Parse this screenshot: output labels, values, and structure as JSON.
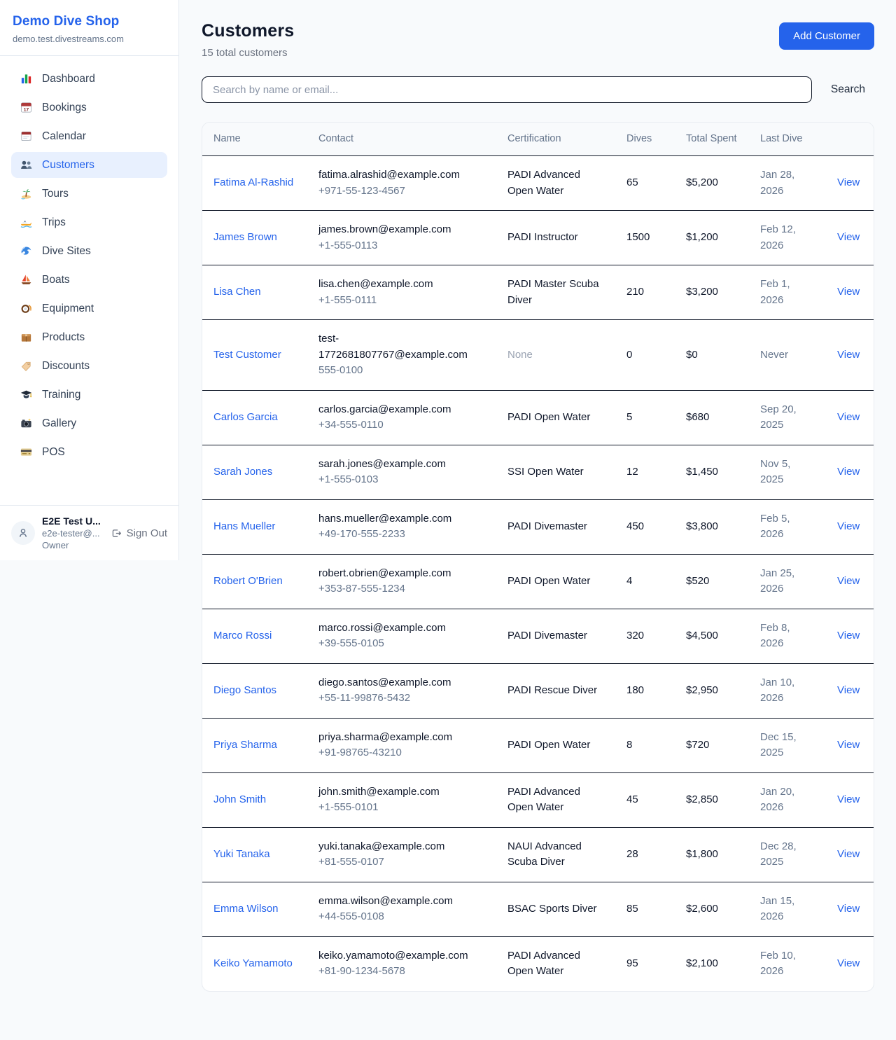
{
  "colors": {
    "accent_blue": "#2563eb",
    "active_item_bg": "#e8f0fe",
    "page_bg": "#f8fafc",
    "dark_text": "#0f172a",
    "muted_text": "#64748b",
    "row_border": "#101828"
  },
  "sidebar": {
    "shop_name": "Demo Dive Shop",
    "shop_domain": "demo.test.divestreams.com",
    "items": [
      {
        "label": "Dashboard",
        "icon": "bar-chart",
        "active": false
      },
      {
        "label": "Bookings",
        "icon": "calendar-date",
        "active": false
      },
      {
        "label": "Calendar",
        "icon": "calendar-pad",
        "active": false
      },
      {
        "label": "Customers",
        "icon": "people",
        "active": true
      },
      {
        "label": "Tours",
        "icon": "island",
        "active": false
      },
      {
        "label": "Trips",
        "icon": "speedboat",
        "active": false
      },
      {
        "label": "Dive Sites",
        "icon": "wave",
        "active": false
      },
      {
        "label": "Boats",
        "icon": "sailboat",
        "active": false
      },
      {
        "label": "Equipment",
        "icon": "diving-mask",
        "active": false
      },
      {
        "label": "Products",
        "icon": "package",
        "active": false
      },
      {
        "label": "Discounts",
        "icon": "tag",
        "active": false
      },
      {
        "label": "Training",
        "icon": "grad-cap",
        "active": false
      },
      {
        "label": "Gallery",
        "icon": "camera",
        "active": false
      },
      {
        "label": "POS",
        "icon": "credit-card",
        "active": false
      }
    ],
    "user": {
      "name": "E2E Test U...",
      "email": "e2e-tester@...",
      "role": "Owner",
      "sign_out_label": "Sign Out"
    }
  },
  "header": {
    "title": "Customers",
    "subtitle": "15 total customers",
    "add_button_label": "Add Customer"
  },
  "search": {
    "placeholder": "Search by name or email...",
    "button_label": "Search"
  },
  "table": {
    "columns": [
      "Name",
      "Contact",
      "Certification",
      "Dives",
      "Total Spent",
      "Last Dive",
      ""
    ],
    "rows": [
      {
        "name": "Fatima Al-Rashid",
        "email": "fatima.alrashid@example.com",
        "phone": "+971-55-123-4567",
        "certification": "PADI Advanced Open Water",
        "dives": "65",
        "total_spent": "$5,200",
        "last_dive": "Jan 28, 2026",
        "action": "View"
      },
      {
        "name": "James Brown",
        "email": "james.brown@example.com",
        "phone": "+1-555-0113",
        "certification": "PADI Instructor",
        "dives": "1500",
        "total_spent": "$1,200",
        "last_dive": "Feb 12, 2026",
        "action": "View"
      },
      {
        "name": "Lisa Chen",
        "email": "lisa.chen@example.com",
        "phone": "+1-555-0111",
        "certification": "PADI Master Scuba Diver",
        "dives": "210",
        "total_spent": "$3,200",
        "last_dive": "Feb 1, 2026",
        "action": "View"
      },
      {
        "name": "Test Customer",
        "email": "test-1772681807767@example.com",
        "phone": "555-0100",
        "certification": "None",
        "dives": "0",
        "total_spent": "$0",
        "last_dive": "Never",
        "action": "View"
      },
      {
        "name": "Carlos Garcia",
        "email": "carlos.garcia@example.com",
        "phone": "+34-555-0110",
        "certification": "PADI Open Water",
        "dives": "5",
        "total_spent": "$680",
        "last_dive": "Sep 20, 2025",
        "action": "View"
      },
      {
        "name": "Sarah Jones",
        "email": "sarah.jones@example.com",
        "phone": "+1-555-0103",
        "certification": "SSI Open Water",
        "dives": "12",
        "total_spent": "$1,450",
        "last_dive": "Nov 5, 2025",
        "action": "View"
      },
      {
        "name": "Hans Mueller",
        "email": "hans.mueller@example.com",
        "phone": "+49-170-555-2233",
        "certification": "PADI Divemaster",
        "dives": "450",
        "total_spent": "$3,800",
        "last_dive": "Feb 5, 2026",
        "action": "View"
      },
      {
        "name": "Robert O'Brien",
        "email": "robert.obrien@example.com",
        "phone": "+353-87-555-1234",
        "certification": "PADI Open Water",
        "dives": "4",
        "total_spent": "$520",
        "last_dive": "Jan 25, 2026",
        "action": "View"
      },
      {
        "name": "Marco Rossi",
        "email": "marco.rossi@example.com",
        "phone": "+39-555-0105",
        "certification": "PADI Divemaster",
        "dives": "320",
        "total_spent": "$4,500",
        "last_dive": "Feb 8, 2026",
        "action": "View"
      },
      {
        "name": "Diego Santos",
        "email": "diego.santos@example.com",
        "phone": "+55-11-99876-5432",
        "certification": "PADI Rescue Diver",
        "dives": "180",
        "total_spent": "$2,950",
        "last_dive": "Jan 10, 2026",
        "action": "View"
      },
      {
        "name": "Priya Sharma",
        "email": "priya.sharma@example.com",
        "phone": "+91-98765-43210",
        "certification": "PADI Open Water",
        "dives": "8",
        "total_spent": "$720",
        "last_dive": "Dec 15, 2025",
        "action": "View"
      },
      {
        "name": "John Smith",
        "email": "john.smith@example.com",
        "phone": "+1-555-0101",
        "certification": "PADI Advanced Open Water",
        "dives": "45",
        "total_spent": "$2,850",
        "last_dive": "Jan 20, 2026",
        "action": "View"
      },
      {
        "name": "Yuki Tanaka",
        "email": "yuki.tanaka@example.com",
        "phone": "+81-555-0107",
        "certification": "NAUI Advanced Scuba Diver",
        "dives": "28",
        "total_spent": "$1,800",
        "last_dive": "Dec 28, 2025",
        "action": "View"
      },
      {
        "name": "Emma Wilson",
        "email": "emma.wilson@example.com",
        "phone": "+44-555-0108",
        "certification": "BSAC Sports Diver",
        "dives": "85",
        "total_spent": "$2,600",
        "last_dive": "Jan 15, 2026",
        "action": "View"
      },
      {
        "name": "Keiko Yamamoto",
        "email": "keiko.yamamoto@example.com",
        "phone": "+81-90-1234-5678",
        "certification": "PADI Advanced Open Water",
        "dives": "95",
        "total_spent": "$2,100",
        "last_dive": "Feb 10, 2026",
        "action": "View"
      }
    ]
  }
}
